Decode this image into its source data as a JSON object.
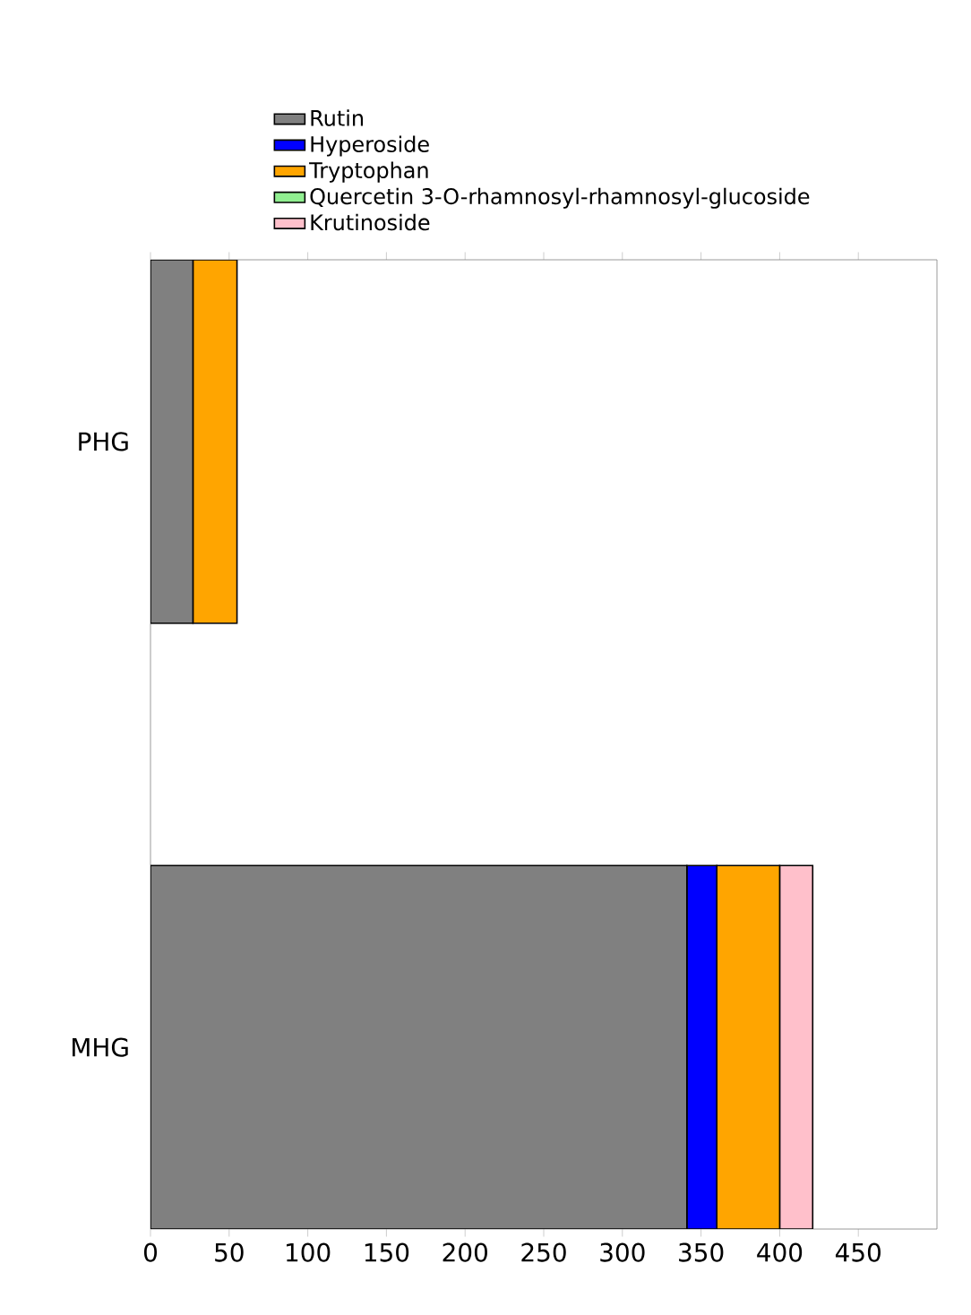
{
  "chart_data": {
    "type": "bar",
    "orientation": "horizontal",
    "stacked": true,
    "categories": [
      "PHG",
      "MHG"
    ],
    "series": [
      {
        "name": "Rutin",
        "color": "#808080",
        "values": [
          27,
          341
        ]
      },
      {
        "name": "Hyperoside",
        "color": "#0000ff",
        "values": [
          0,
          19
        ]
      },
      {
        "name": "Tryptophan",
        "color": "#ffa500",
        "values": [
          28,
          40
        ]
      },
      {
        "name": "Quercetin 3-O-rhamnosyl-rhamnosyl-glucoside",
        "color": "#90ee90",
        "values": [
          0,
          0
        ]
      },
      {
        "name": "Krutinoside",
        "color": "#ffc0cb",
        "values": [
          0,
          21
        ]
      }
    ],
    "xlim": [
      0,
      500
    ],
    "xticks": [
      0,
      50,
      100,
      150,
      200,
      250,
      300,
      350,
      400,
      450
    ],
    "legend": "top",
    "grid": false
  }
}
